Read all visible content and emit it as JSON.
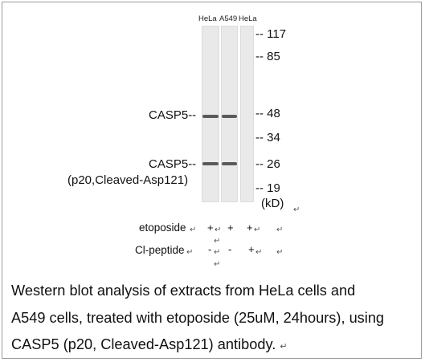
{
  "figure": {
    "lanes": [
      {
        "label": "HeLa"
      },
      {
        "label": "A549"
      },
      {
        "label": "HeLa"
      }
    ],
    "markers": [
      {
        "text": "-- 117"
      },
      {
        "text": "-- 85"
      },
      {
        "text": "-- 48"
      },
      {
        "text": "-- 34"
      },
      {
        "text": "-- 26"
      },
      {
        "text": "-- 19"
      }
    ],
    "kd_label": "(kD)",
    "band_labels": {
      "casp5_full": "CASP5--",
      "casp5_p20": "CASP5--",
      "casp5_p20_detail": "(p20,Cleaved-Asp121)"
    },
    "treatments": {
      "etoposide_label": "etoposide",
      "etoposide_values": [
        "+",
        "+",
        "+"
      ],
      "cl_peptide_label": "Cl-peptide",
      "cl_peptide_values": [
        "-",
        "-",
        "+"
      ]
    },
    "return_mark": "↵"
  },
  "caption": {
    "line1": "Western blot analysis of extracts from HeLa cells and",
    "line2": "A549 cells, treated with etoposide (25uM, 24hours), using",
    "line3": "CASP5 (p20, Cleaved-Asp121) antibody.",
    "return_mark": "↵"
  }
}
